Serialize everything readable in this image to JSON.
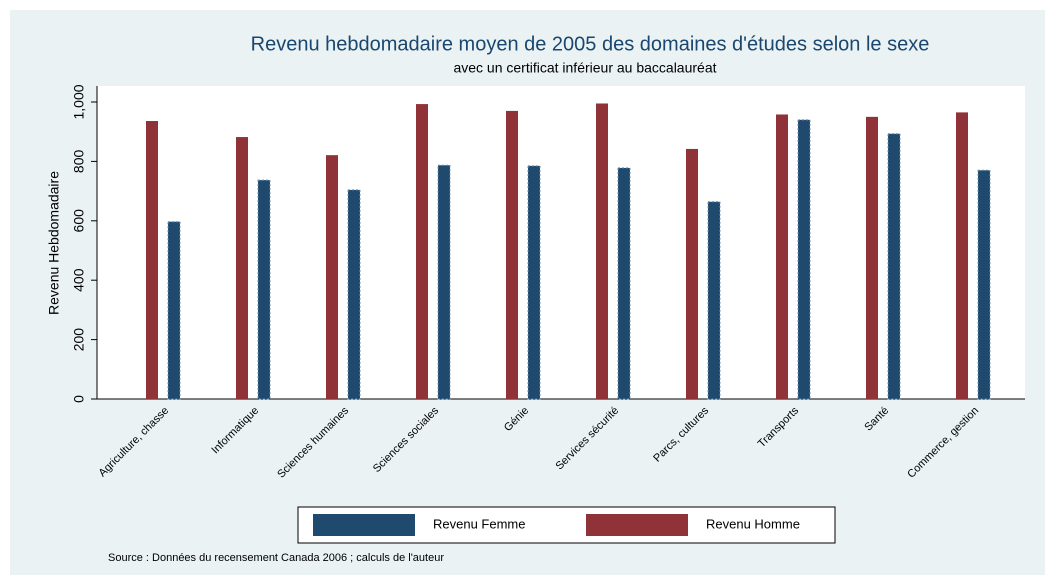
{
  "chart_data": {
    "type": "bar",
    "title": "Revenu hebdomadaire moyen de 2005 des domaines d'études selon le sexe",
    "subtitle": "avec un certificat inférieur au baccalauréat",
    "y_label": "Revenu Hebdomadaire",
    "note": "Source : Données du recensement Canada 2006 ; calculs de l'auteur",
    "categories": [
      "Agriculture, chasse",
      "Informatique",
      "Sciences humaines",
      "Sciences sociales",
      "Génie",
      "Services sécurité",
      "Parcs, cultures",
      "Transports",
      "Santé",
      "Commerce, gestion"
    ],
    "series": [
      {
        "name": "Revenu Femme",
        "color": "#1f4a6e",
        "values": [
          597,
          737,
          704,
          787,
          785,
          778,
          664,
          940,
          893,
          770
        ]
      },
      {
        "name": "Revenu Homme",
        "color": "#8f3339",
        "values": [
          936,
          882,
          821,
          993,
          970,
          995,
          842,
          958,
          950,
          965
        ]
      }
    ],
    "ylim": [
      0,
      1000
    ],
    "yticks": [
      0,
      200,
      400,
      600,
      800,
      {
        "value": 1000,
        "label": "1,000"
      }
    ]
  }
}
